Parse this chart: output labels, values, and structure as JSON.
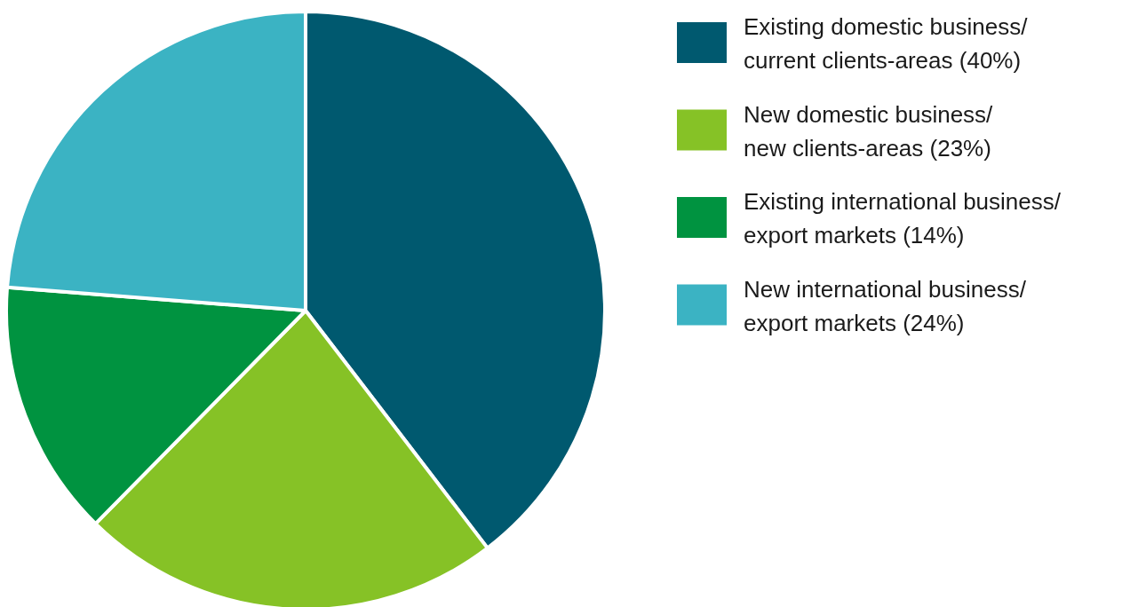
{
  "chart_data": {
    "type": "pie",
    "categories": [
      "Existing domestic business/ current clients-areas (40%)",
      "New domestic business/ new clients-areas (23%)",
      "Existing international business/ export markets (14%)",
      "New international business/ export markets (24%)"
    ],
    "values": [
      40,
      23,
      14,
      24
    ],
    "colors": [
      "#00596f",
      "#86c226",
      "#009340",
      "#3bb3c3"
    ],
    "legend": "right"
  }
}
